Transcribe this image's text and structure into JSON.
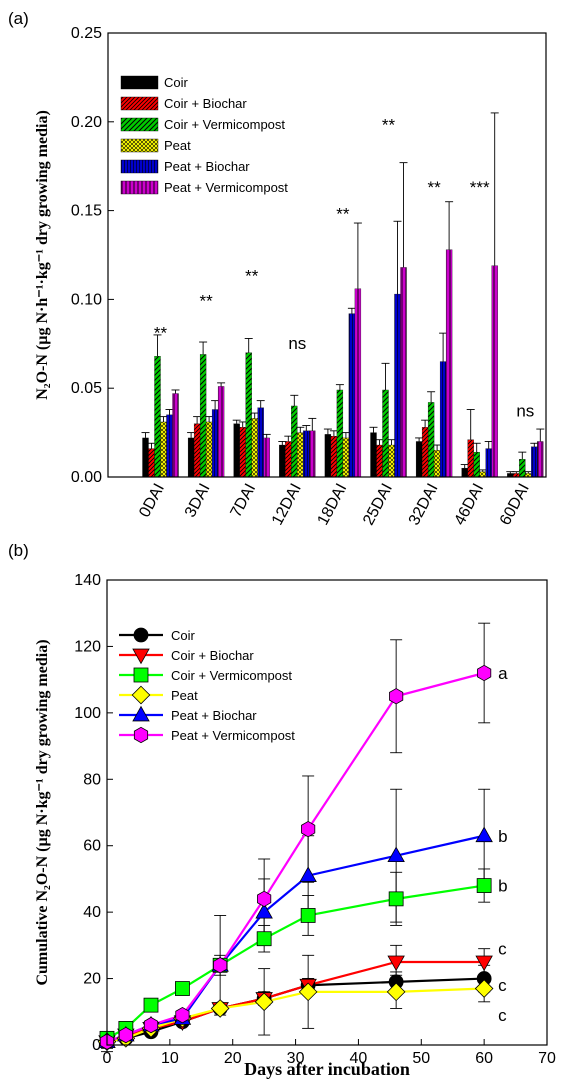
{
  "chart_data": [
    {
      "panel_label": "(a)",
      "type": "bar",
      "ylabel": "N₂O-N (µg N·h⁻¹·kg⁻¹ dry growing media)",
      "ylim": [
        0,
        0.25
      ],
      "yticks": [
        "0.00",
        "0.05",
        "0.10",
        "0.15",
        "0.20",
        "0.25"
      ],
      "categories": [
        "0DAI",
        "3DAI",
        "7DAI",
        "12DAI",
        "18DAI",
        "25DAI",
        "32DAI",
        "46DAI",
        "60DAI"
      ],
      "legend_position": "top-left",
      "series": [
        {
          "name": "Coir",
          "color": "#000000",
          "pattern": "solid",
          "values": [
            0.022,
            0.022,
            0.03,
            0.018,
            0.024,
            0.025,
            0.02,
            0.005,
            0.002
          ],
          "errors": [
            0.003,
            0.003,
            0.002,
            0.002,
            0.003,
            0.003,
            0.002,
            0.002,
            0.001
          ]
        },
        {
          "name": "Coir + Biochar",
          "color": "#ff0000",
          "pattern": "diag",
          "values": [
            0.016,
            0.03,
            0.028,
            0.02,
            0.023,
            0.018,
            0.028,
            0.021,
            0.002
          ],
          "errors": [
            0.003,
            0.004,
            0.003,
            0.003,
            0.003,
            0.003,
            0.004,
            0.017,
            0.001
          ]
        },
        {
          "name": "Coir + Vermicompost",
          "color": "#00cc00",
          "pattern": "diag",
          "values": [
            0.068,
            0.069,
            0.07,
            0.04,
            0.049,
            0.049,
            0.042,
            0.014,
            0.01
          ],
          "errors": [
            0.012,
            0.007,
            0.008,
            0.006,
            0.003,
            0.015,
            0.006,
            0.005,
            0.004
          ]
        },
        {
          "name": "Peat",
          "color": "#ffff00",
          "pattern": "cross",
          "values": [
            0.031,
            0.031,
            0.033,
            0.025,
            0.022,
            0.018,
            0.015,
            0.003,
            0.002
          ],
          "errors": [
            0.003,
            0.003,
            0.003,
            0.003,
            0.003,
            0.003,
            0.003,
            0.001,
            0.001
          ]
        },
        {
          "name": "Peat + Biochar",
          "color": "#0000cc",
          "pattern": "vert",
          "values": [
            0.035,
            0.038,
            0.039,
            0.026,
            0.092,
            0.103,
            0.065,
            0.016,
            0.017
          ],
          "errors": [
            0.003,
            0.005,
            0.004,
            0.003,
            0.003,
            0.041,
            0.016,
            0.004,
            0.002
          ]
        },
        {
          "name": "Peat + Vermicompost",
          "color": "#cc00cc",
          "pattern": "vert",
          "values": [
            0.047,
            0.051,
            0.022,
            0.026,
            0.106,
            0.118,
            0.128,
            0.119,
            0.02
          ],
          "errors": [
            0.002,
            0.002,
            0.002,
            0.007,
            0.037,
            0.059,
            0.027,
            0.086,
            0.007
          ]
        }
      ],
      "significance": [
        "**",
        "**",
        "**",
        "ns",
        "**",
        "**",
        "**",
        "***",
        "ns"
      ],
      "significance_y": [
        0.078,
        0.096,
        0.11,
        0.072,
        0.145,
        0.195,
        0.16,
        0.16,
        0.034
      ]
    },
    {
      "panel_label": "(b)",
      "type": "line",
      "xlabel": "Days after incubation",
      "ylabel": "Cumulative N₂O-N (µg N·kg⁻¹ dry growing media)",
      "xlim": [
        0,
        70
      ],
      "ylim": [
        0,
        140
      ],
      "xticks": [
        "0",
        "10",
        "20",
        "30",
        "40",
        "50",
        "60",
        "70"
      ],
      "yticks": [
        "0",
        "20",
        "40",
        "60",
        "80",
        "100",
        "120",
        "140"
      ],
      "x": [
        0,
        3,
        7,
        12,
        18,
        25,
        32,
        46,
        60
      ],
      "legend_position": "top-left",
      "series": [
        {
          "name": "Coir",
          "color": "#000000",
          "marker": "circle",
          "values": [
            1,
            2,
            4,
            7,
            11,
            14,
            18,
            19,
            20
          ],
          "errors": [
            2,
            1,
            1,
            1,
            1,
            2,
            2,
            3,
            4
          ]
        },
        {
          "name": "Coir + Biochar",
          "color": "#ff0000",
          "marker": "triangle-down",
          "values": [
            1,
            3,
            5,
            7,
            11,
            14,
            18,
            25,
            25
          ],
          "errors": [
            1,
            1,
            1,
            1,
            1,
            2,
            2,
            5,
            4
          ]
        },
        {
          "name": "Coir + Vermicompost",
          "color": "#00ff00",
          "marker": "square",
          "values": [
            2,
            5,
            12,
            17,
            24,
            32,
            39,
            44,
            48
          ],
          "errors": [
            1,
            1,
            1,
            1,
            2,
            4,
            6,
            8,
            5
          ]
        },
        {
          "name": "Peat",
          "color": "#ffff00",
          "marker": "diamond",
          "values": [
            1,
            2,
            5,
            8,
            11,
            13,
            16,
            16,
            17
          ],
          "errors": [
            3,
            1,
            1,
            1,
            1,
            10,
            11,
            5,
            4
          ]
        },
        {
          "name": "Peat + Biochar",
          "color": "#0000ff",
          "marker": "triangle-up",
          "values": [
            1,
            3,
            6,
            8,
            24,
            40,
            51,
            57,
            63
          ],
          "errors": [
            1,
            1,
            1,
            1,
            3,
            10,
            12,
            20,
            14
          ]
        },
        {
          "name": "Peat + Vermicompost",
          "color": "#ff00ff",
          "marker": "hexagon",
          "values": [
            1,
            3,
            6,
            9,
            24,
            44,
            65,
            105,
            112
          ],
          "errors": [
            1,
            1,
            1,
            1,
            15,
            12,
            16,
            17,
            15
          ]
        }
      ],
      "end_labels": [
        {
          "series": "Peat + Vermicompost",
          "text": "a"
        },
        {
          "series": "Peat + Biochar",
          "text": "b"
        },
        {
          "series": "Coir + Vermicompost",
          "text": "b"
        },
        {
          "series": "Coir + Biochar",
          "text": "c"
        },
        {
          "series": "Coir",
          "text": "c"
        },
        {
          "series": "Peat",
          "text": "c"
        }
      ]
    }
  ]
}
